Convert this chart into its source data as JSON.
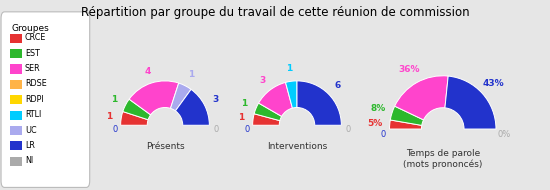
{
  "title": "Répartition par groupe du travail de cette réunion de commission",
  "groups": [
    "CRCE",
    "EST",
    "SER",
    "RDSE",
    "RDPI",
    "RTLI",
    "UC",
    "LR",
    "NI"
  ],
  "colors": [
    "#e63232",
    "#2db82d",
    "#ff44cc",
    "#ffb347",
    "#ffd700",
    "#00ccff",
    "#aaaaee",
    "#2233cc",
    "#aaaaaa"
  ],
  "presents": [
    1,
    1,
    4,
    0,
    0,
    0,
    1,
    3,
    0
  ],
  "interventions": [
    1,
    1,
    3,
    0,
    0,
    1,
    0,
    6,
    0
  ],
  "temps_parole": [
    5,
    8,
    36,
    0,
    0,
    0,
    0,
    43,
    0
  ],
  "chart_titles": [
    "Présents",
    "Interventions",
    "Temps de parole\n(mots prononcés)"
  ],
  "bg_color": "#e6e6e6",
  "legend_title": "Groupes",
  "label_colors_presents_bottom": [
    "#2233cc",
    "#aaaaaa"
  ],
  "label_colors_interventions_bottom": [
    "#2233cc",
    "#aaaaaa"
  ],
  "label_colors_temps_bottom_right": "#aaaaaa",
  "label_colors_temps_top": [
    "#00ccff",
    "#aaaaee"
  ]
}
